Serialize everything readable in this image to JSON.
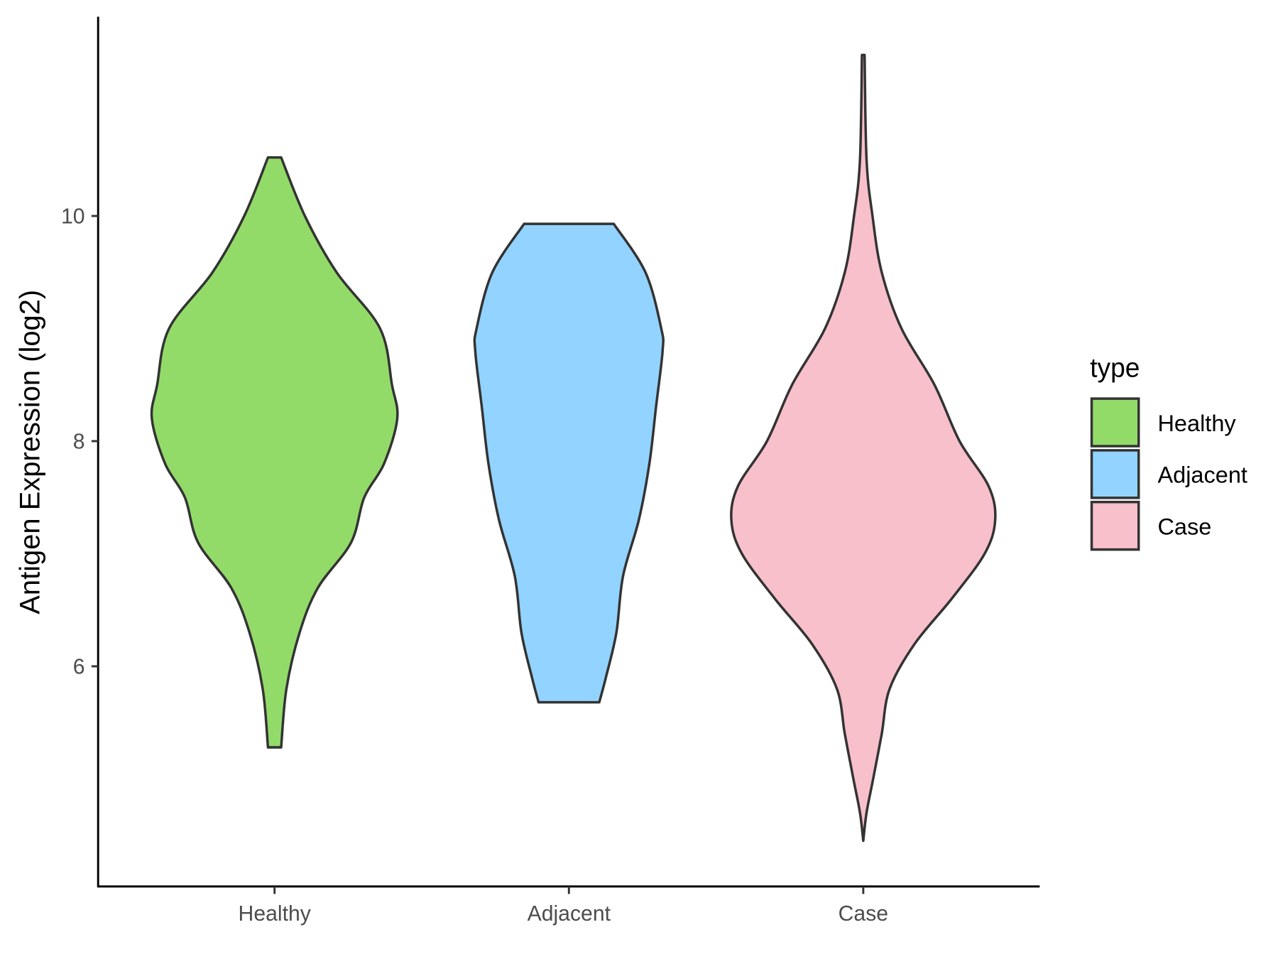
{
  "chart_data": {
    "type": "violin",
    "title": "",
    "xlabel": "",
    "ylabel": "Antigen Expression (log2)",
    "ylim": [
      4.04,
      11.77
    ],
    "yticks": [
      6,
      8,
      10
    ],
    "ytick_labels": [
      "6",
      "8",
      "10"
    ],
    "categories": [
      "Healthy",
      "Adjacent",
      "Case"
    ],
    "grid": false,
    "legend": {
      "title": "type",
      "placement": "right",
      "entries": [
        "Healthy",
        "Adjacent",
        "Case"
      ]
    },
    "series": [
      {
        "name": "Healthy",
        "color": "#93DB69",
        "profile": [
          [
            10.52,
            0.05
          ],
          [
            10.0,
            0.23
          ],
          [
            9.5,
            0.47
          ],
          [
            9.0,
            0.8
          ],
          [
            8.5,
            0.89
          ],
          [
            8.2,
            0.93
          ],
          [
            7.8,
            0.83
          ],
          [
            7.5,
            0.68
          ],
          [
            7.1,
            0.58
          ],
          [
            6.7,
            0.33
          ],
          [
            6.3,
            0.19
          ],
          [
            5.8,
            0.09
          ],
          [
            5.28,
            0.05
          ]
        ]
      },
      {
        "name": "Adjacent",
        "color": "#92D3FF",
        "profile": [
          [
            9.93,
            0.34
          ],
          [
            9.5,
            0.58
          ],
          [
            9.0,
            0.7
          ],
          [
            8.8,
            0.71
          ],
          [
            8.3,
            0.66
          ],
          [
            7.8,
            0.61
          ],
          [
            7.3,
            0.53
          ],
          [
            6.8,
            0.41
          ],
          [
            6.3,
            0.36
          ],
          [
            5.9,
            0.28
          ],
          [
            5.68,
            0.23
          ]
        ]
      },
      {
        "name": "Case",
        "color": "#F7C0CB",
        "profile": [
          [
            11.43,
            0.01
          ],
          [
            10.5,
            0.025
          ],
          [
            10.0,
            0.07
          ],
          [
            9.5,
            0.14
          ],
          [
            9.0,
            0.29
          ],
          [
            8.5,
            0.54
          ],
          [
            8.0,
            0.73
          ],
          [
            7.6,
            0.95
          ],
          [
            7.3,
            1.0
          ],
          [
            7.0,
            0.92
          ],
          [
            6.6,
            0.67
          ],
          [
            6.2,
            0.39
          ],
          [
            5.8,
            0.2
          ],
          [
            5.4,
            0.14
          ],
          [
            5.0,
            0.075
          ],
          [
            4.7,
            0.025
          ],
          [
            4.45,
            0.0
          ]
        ]
      }
    ]
  }
}
